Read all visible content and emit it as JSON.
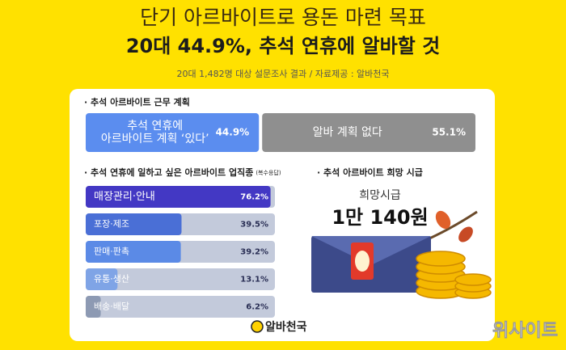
{
  "header": {
    "title": "단기 아르바이트로 용돈 마련 목표",
    "headline": "20대 44.9%, 추석 연휴에 알바할 것",
    "source": "20대 1,482명 대상 설문조사 결과 / 자료제공 : 알바천국"
  },
  "chart_data": [
    {
      "type": "bar",
      "stacked": true,
      "title": "· 추석 아르바이트 근무 계획",
      "categories": [
        "추석 연휴에\n아르바이트 계획 ‘있다’",
        "알바 계획 없다"
      ],
      "values": [
        44.9,
        55.1
      ],
      "value_labels": [
        "44.9%",
        "55.1%"
      ],
      "colors": [
        "#5b8def",
        "#8f8f8f"
      ]
    },
    {
      "type": "bar",
      "title": "· 추석 연휴에 일하고 싶은 아르바이트 업직종",
      "note": "(복수응답)",
      "categories": [
        "매장관리·안내",
        "포장·제조",
        "판매·판촉",
        "유통·생산",
        "배송·배달"
      ],
      "values": [
        76.2,
        39.5,
        39.2,
        13.1,
        6.2
      ],
      "value_labels": [
        "76.2%",
        "39.5%",
        "39.2%",
        "13.1%",
        "6.2%"
      ],
      "colors": [
        "#4338c4",
        "#4a6fd6",
        "#5b8ae6",
        "#7fa4e6",
        "#8d9ab3"
      ]
    }
  ],
  "wage": {
    "title": "· 추석 아르바이트 희망 시급",
    "label": "희망시급",
    "value": "1만 140원"
  },
  "footer": {
    "logo": "알바천국",
    "watermark": "위사이트"
  }
}
